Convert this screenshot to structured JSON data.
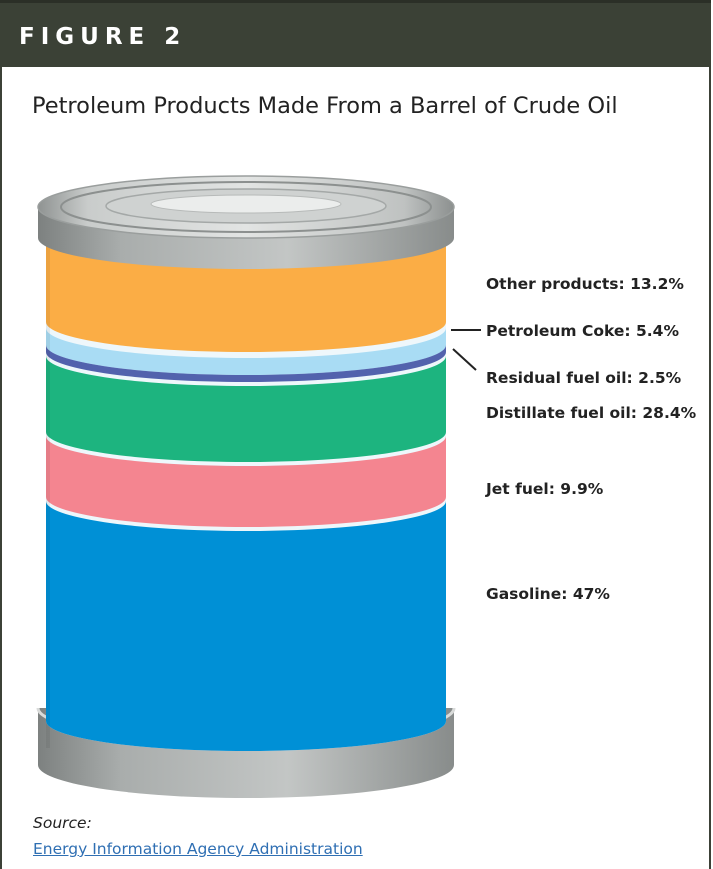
{
  "header": {
    "figure_label": "FIGURE 2",
    "background_color": "#3b4136"
  },
  "title": "Petroleum Products Made From a Barrel of Crude Oil",
  "source": {
    "label": "Source:",
    "link_text": "Energy Information Agency Administration",
    "link_color": "#2f6fb3"
  },
  "chart_data": {
    "type": "stacked bar (barrel-can illustration)",
    "unit": "%",
    "series": [
      {
        "name": "Other products",
        "label": "Other products: 13.2%",
        "value": 13.2,
        "color": "#fbad45"
      },
      {
        "name": "Petroleum Coke",
        "label": "Petroleum Coke: 5.4%",
        "value": 5.4,
        "color": "#a9dcf4"
      },
      {
        "name": "Residual fuel oil",
        "label": "Residual fuel oil: 2.5%",
        "value": 2.5,
        "color": "#5262ad"
      },
      {
        "name": "Distillate fuel oil",
        "label": "Distillate fuel oil: 28.4%",
        "value": 28.4,
        "color": "#1db47f"
      },
      {
        "name": "Jet fuel",
        "label": "Jet fuel: 9.9%",
        "value": 9.9,
        "color": "#f48590"
      },
      {
        "name": "Gasoline",
        "label": "Gasoline: 47%",
        "value": 47,
        "color": "#0090d6"
      }
    ],
    "can_colors": {
      "metal": "#b9bcbb",
      "metal_dark": "#8f9392",
      "metal_light": "#e4e6e5",
      "divider": "#eef7fb"
    }
  }
}
